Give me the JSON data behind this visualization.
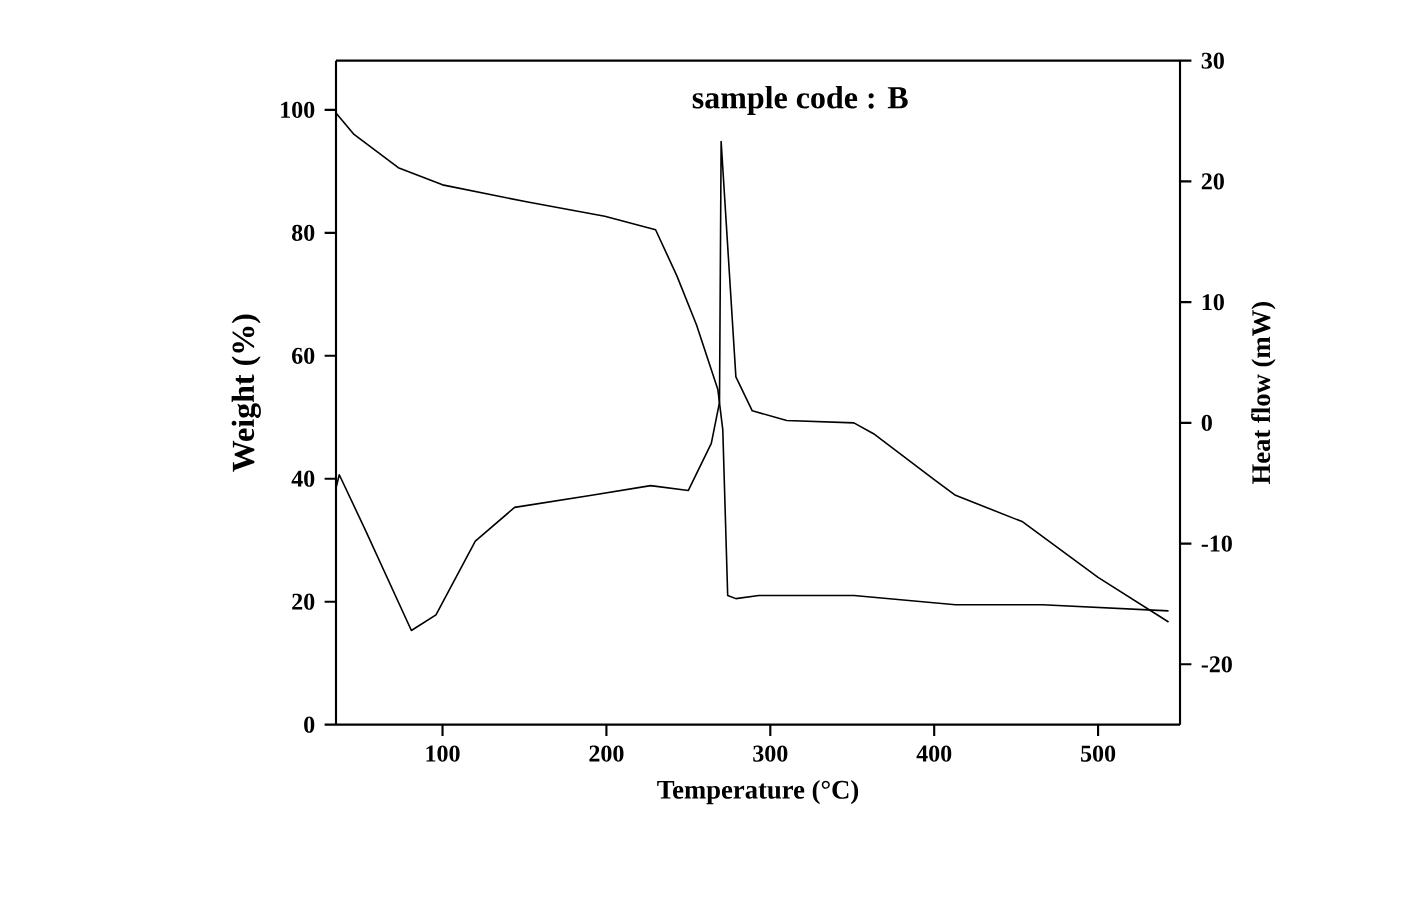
{
  "chart_data": {
    "type": "line",
    "xlabel": "Temperature (°C)",
    "ylabel": "Weight (%)",
    "y2label": "Heat flow (mW)",
    "annotations": [
      "sample code : B"
    ],
    "xlim": [
      35,
      550
    ],
    "xticks": [
      100,
      200,
      300,
      400,
      500
    ],
    "ylim": [
      0,
      108
    ],
    "yticks": [
      0,
      20,
      40,
      60,
      80,
      100
    ],
    "y2lim": [
      -25,
      30
    ],
    "y2ticks": [
      -20,
      -10,
      0,
      10,
      20,
      30
    ],
    "marker": "none",
    "line_style": "solid",
    "series": [
      {
        "color": "#000000",
        "axis": "y",
        "x": [
          35,
          46,
          73,
          100,
          152,
          199,
          230,
          243,
          255,
          268,
          271,
          274,
          279,
          293,
          351,
          413,
          466,
          543
        ],
        "values": [
          99.5,
          96,
          90.6,
          87.8,
          85,
          82.7,
          80.5,
          73,
          65,
          54.5,
          48,
          21,
          20.5,
          21,
          21,
          19.5,
          19.5,
          18.5
        ]
      },
      {
        "color": "#000000",
        "axis": "y2",
        "x": [
          35,
          37,
          53,
          81,
          96,
          120,
          144,
          191,
          227,
          250,
          264,
          269,
          270,
          279,
          289,
          310,
          351,
          363,
          400,
          413,
          454,
          500,
          543
        ],
        "values": [
          -5.4,
          -4.3,
          -8.9,
          -17.2,
          -15.9,
          -9.8,
          -7,
          -6,
          -5.2,
          -5.6,
          -1.7,
          1.7,
          23.3,
          3.8,
          1,
          0.2,
          0,
          -0.9,
          -4.7,
          -6,
          -8.2,
          -12.8,
          -16.5
        ]
      }
    ]
  }
}
